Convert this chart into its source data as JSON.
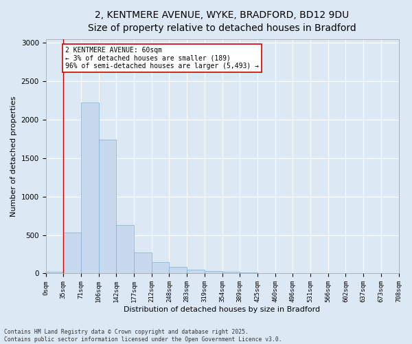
{
  "title_line1": "2, KENTMERE AVENUE, WYKE, BRADFORD, BD12 9DU",
  "title_line2": "Size of property relative to detached houses in Bradford",
  "xlabel": "Distribution of detached houses by size in Bradford",
  "ylabel": "Number of detached properties",
  "bar_values": [
    20,
    530,
    2220,
    1740,
    630,
    270,
    150,
    85,
    50,
    35,
    25,
    15,
    5,
    0,
    0,
    0,
    0,
    0,
    0,
    0
  ],
  "bar_labels": [
    "0sqm",
    "35sqm",
    "71sqm",
    "106sqm",
    "142sqm",
    "177sqm",
    "212sqm",
    "248sqm",
    "283sqm",
    "319sqm",
    "354sqm",
    "389sqm",
    "425sqm",
    "460sqm",
    "496sqm",
    "531sqm",
    "566sqm",
    "602sqm",
    "637sqm",
    "673sqm",
    "708sqm"
  ],
  "bar_color": "#c8d9ee",
  "bar_edge_color": "#7bafd4",
  "bar_edge_width": 0.5,
  "vline_x": 1,
  "vline_color": "#cc0000",
  "annotation_text": "2 KENTMERE AVENUE: 60sqm\n← 3% of detached houses are smaller (189)\n96% of semi-detached houses are larger (5,493) →",
  "annotation_box_color": "#ffffff",
  "annotation_box_edge": "#cc0000",
  "ylim": [
    0,
    3050
  ],
  "yticks": [
    0,
    500,
    1000,
    1500,
    2000,
    2500,
    3000
  ],
  "bg_color": "#dde8f5",
  "plot_bg": "#dde8f5",
  "grid_color": "#ffffff",
  "footer_line1": "Contains HM Land Registry data © Crown copyright and database right 2025.",
  "footer_line2": "Contains public sector information licensed under the Open Government Licence v3.0.",
  "title_fontsize": 10,
  "subtitle_fontsize": 9.5,
  "axis_label_fontsize": 8,
  "tick_fontsize": 6.5,
  "annotation_fontsize": 7,
  "footer_fontsize": 5.8
}
